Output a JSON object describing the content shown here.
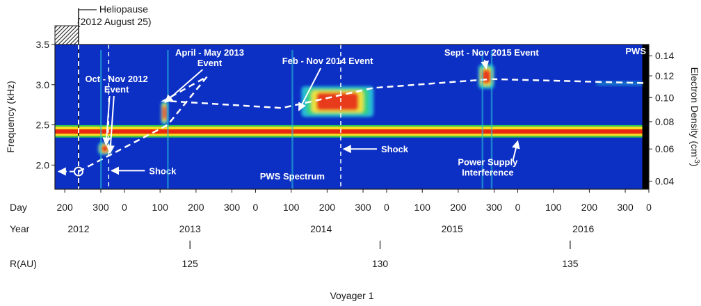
{
  "chart_data": {
    "type": "heatmap",
    "title": "",
    "footer": "Voyager 1",
    "instrument_label": "PWS",
    "colors": {
      "background": "#0c2fc4",
      "band_yellow": "#f4e020",
      "band_red": "#e82810",
      "band_green": "#2ec84a",
      "emission_red": "#e8301a",
      "emission_yellow": "#f6e43a",
      "emission_green": "#3ad47a",
      "emission_cyan": "#27c2d8",
      "annotation": "#ffffff",
      "data_gap": "#000000"
    },
    "y_left": {
      "label": "Frequency (kHz)",
      "range": [
        1.7,
        3.5
      ],
      "ticks": [
        "2.0",
        "2.5",
        "3.0",
        "3.5"
      ]
    },
    "y_right": {
      "label": "Electron Density (cm",
      "label_exp": "-3",
      "label_close": ")",
      "ticks": [
        {
          "label": "0.04",
          "freq": 1.8
        },
        {
          "label": "0.06",
          "freq": 2.2
        },
        {
          "label": "0.08",
          "freq": 2.54
        },
        {
          "label": "0.10",
          "freq": 2.84
        },
        {
          "label": "0.12",
          "freq": 3.11
        },
        {
          "label": "0.14",
          "freq": 3.36
        }
      ]
    },
    "x_day": {
      "label": "Day",
      "range": [
        2012.47,
        2017.0
      ],
      "ticks": [
        {
          "label": "200",
          "t": 2012.545
        },
        {
          "label": "300",
          "t": 2012.82
        },
        {
          "label": "0",
          "t": 2013.0
        },
        {
          "label": "100",
          "t": 2013.272
        },
        {
          "label": "200",
          "t": 2013.546
        },
        {
          "label": "300",
          "t": 2013.82
        },
        {
          "label": "0",
          "t": 2014.0
        },
        {
          "label": "100",
          "t": 2014.272
        },
        {
          "label": "200",
          "t": 2014.546
        },
        {
          "label": "300",
          "t": 2014.82
        },
        {
          "label": "0",
          "t": 2015.0
        },
        {
          "label": "100",
          "t": 2015.272
        },
        {
          "label": "200",
          "t": 2015.546
        },
        {
          "label": "300",
          "t": 2015.82
        },
        {
          "label": "0",
          "t": 2016.0
        },
        {
          "label": "100",
          "t": 2016.272
        },
        {
          "label": "200",
          "t": 2016.546
        },
        {
          "label": "300",
          "t": 2016.82
        },
        {
          "label": "0",
          "t": 2017.0
        }
      ]
    },
    "x_year": {
      "label": "Year",
      "ticks": [
        {
          "label": "2012",
          "t": 2012.65
        },
        {
          "label": "2013",
          "t": 2013.5
        },
        {
          "label": "2014",
          "t": 2014.5
        },
        {
          "label": "2015",
          "t": 2015.5
        },
        {
          "label": "2016",
          "t": 2016.5
        }
      ]
    },
    "x_distance": {
      "label": "R(AU)",
      "ticks": [
        {
          "label": "125",
          "t": 2013.5
        },
        {
          "label": "130",
          "t": 2014.95
        },
        {
          "label": "135",
          "t": 2016.4
        }
      ]
    },
    "heliopause": {
      "label": "Heliopause",
      "date": "(2012 August 25)",
      "t": 2012.65,
      "freq": 1.92
    },
    "interference_band": {
      "low": 2.36,
      "high": 2.48
    },
    "events": [
      {
        "name": "Oct - Nov 2012\nEvent",
        "t_start": 2012.8,
        "t_end": 2012.9,
        "freq_low": 2.13,
        "freq_high": 2.28
      },
      {
        "name": "April - May 2013\nEvent",
        "t_start": 2013.28,
        "t_end": 2013.33,
        "freq_low": 2.5,
        "freq_high": 2.8
      },
      {
        "name": "Feb - Nov 2014 Event",
        "t_start": 2014.35,
        "t_end": 2014.9,
        "freq_low": 2.6,
        "freq_high": 2.98
      },
      {
        "name": "Sept - Nov 2015 Event",
        "t_start": 2015.7,
        "t_end": 2015.82,
        "freq_low": 2.95,
        "freq_high": 3.25
      }
    ],
    "trend_line": [
      {
        "t": 2012.65,
        "freq": 1.92
      },
      {
        "t": 2013.33,
        "freq": 2.5
      },
      {
        "t": 2013.63,
        "freq": 3.1
      },
      {
        "t": 2013.3,
        "freq": 2.8
      },
      {
        "t": 2014.2,
        "freq": 2.71
      },
      {
        "t": 2014.9,
        "freq": 2.96
      },
      {
        "t": 2015.8,
        "freq": 3.07
      },
      {
        "t": 2016.98,
        "freq": 3.02
      }
    ],
    "shocks": [
      {
        "label": "Shock",
        "t": 2012.88
      },
      {
        "label": "Shock",
        "t": 2014.65
      }
    ],
    "notes": [
      {
        "label": "PWS Spectrum",
        "t": 2014.27
      },
      {
        "label": "Power Supply\nInterference",
        "t": 2015.75
      }
    ]
  }
}
